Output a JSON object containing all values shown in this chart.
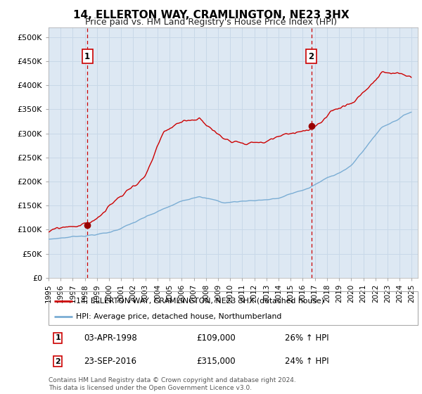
{
  "title": "14, ELLERTON WAY, CRAMLINGTON, NE23 3HX",
  "subtitle": "Price paid vs. HM Land Registry's House Price Index (HPI)",
  "legend_line1": "14, ELLERTON WAY, CRAMLINGTON, NE23 3HX (detached house)",
  "legend_line2": "HPI: Average price, detached house, Northumberland",
  "annotation1_date": "03-APR-1998",
  "annotation1_price": "£109,000",
  "annotation1_hpi": "26% ↑ HPI",
  "annotation2_date": "23-SEP-2016",
  "annotation2_price": "£315,000",
  "annotation2_hpi": "24% ↑ HPI",
  "footnote": "Contains HM Land Registry data © Crown copyright and database right 2024.\nThis data is licensed under the Open Government Licence v3.0.",
  "red_color": "#cc0000",
  "blue_color": "#7aadd4",
  "bg_color": "#dde8f3",
  "grid_color": "#c8d8e8",
  "vline_color_1": "#cc0000",
  "vline_color_2": "#cc0000",
  "dot_color": "#990000",
  "xlim_start": 1995.0,
  "xlim_end": 2025.5,
  "ylim_min": 0,
  "ylim_max": 520000,
  "sale1_year": 1998.25,
  "sale1_price": 109000,
  "sale2_year": 2016.75,
  "sale2_price": 315000
}
